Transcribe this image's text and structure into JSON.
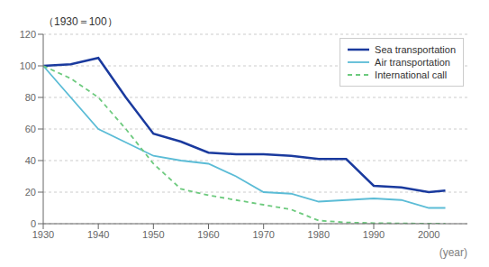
{
  "chart_data": {
    "type": "line",
    "xlabel": "(year)",
    "ylabel": "（1930＝100）",
    "xlim": [
      1930,
      2007
    ],
    "xticks": [
      1930,
      1940,
      1950,
      1960,
      1970,
      1980,
      1990,
      2000
    ],
    "ylim": [
      0,
      120
    ],
    "yticks": [
      0,
      20,
      40,
      60,
      80,
      100,
      120
    ],
    "grid": true,
    "legend": "upper right",
    "series": [
      {
        "name": "Sea transportation",
        "color": "#1a3a9e",
        "line_style": "solid",
        "x": [
          1930,
          1935,
          1940,
          1945,
          1950,
          1955,
          1960,
          1965,
          1970,
          1975,
          1980,
          1985,
          1990,
          1995,
          2000,
          2003
        ],
        "values": [
          100,
          101,
          105,
          80,
          57,
          52,
          45,
          44,
          44,
          43,
          41,
          41,
          24,
          23,
          20,
          21
        ]
      },
      {
        "name": "Air transportation",
        "color": "#5bbcd6",
        "line_style": "solid",
        "x": [
          1930,
          1940,
          1950,
          1955,
          1960,
          1965,
          1970,
          1975,
          1980,
          1985,
          1990,
          1995,
          2000,
          2003
        ],
        "values": [
          100,
          60,
          43,
          40,
          38,
          30,
          20,
          19,
          14,
          15,
          16,
          15,
          10,
          10
        ]
      },
      {
        "name": "International call",
        "color": "#6dca7e",
        "line_style": "dashed",
        "x": [
          1930,
          1935,
          1940,
          1945,
          1950,
          1955,
          1960,
          1965,
          1970,
          1975,
          1980,
          1985,
          1990,
          1995,
          2000,
          2003
        ],
        "values": [
          100,
          92,
          80,
          60,
          38,
          22,
          18,
          15,
          12,
          9,
          2,
          0.8,
          0.4,
          0.2,
          0.05,
          0.0
        ]
      }
    ]
  }
}
